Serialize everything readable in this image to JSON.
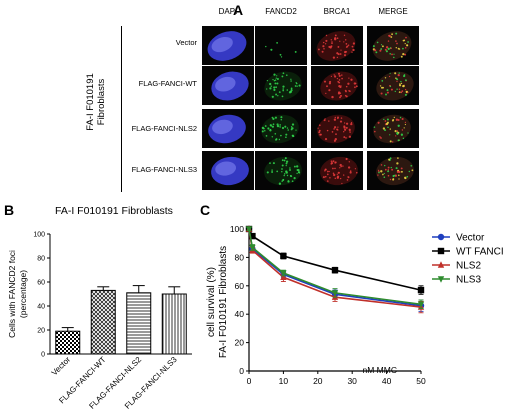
{
  "panel_a": {
    "letter": "A",
    "columns": [
      "DAPI",
      "FANCD2",
      "BRCA1",
      "MERGE"
    ],
    "rows": [
      "Vector",
      "FLAG-FANCI-WT",
      "FLAG-FANCI-NLS2",
      "FLAG-FANCI-NLS3"
    ],
    "side_title_line1": "FA-I F010191",
    "side_title_line2": "Fibroblasts",
    "colors": {
      "dapi": "#3b3fd8",
      "fancd2": "#2fd24a",
      "brca1": "#e0393a",
      "merge": "#d8c040"
    }
  },
  "panel_b": {
    "letter": "B",
    "title": "FA-I F010191 Fibroblasts",
    "ylabel_line1": "Cells with FANCD2 foci",
    "ylabel_line2": "(percentage)"
  },
  "panel_c": {
    "letter": "C",
    "ylabel_line1": "cell survival (%)",
    "ylabel_line2": "FA-I F010191 Fibroblasts",
    "xlabel": "nM MMC"
  },
  "chart_data": [
    {
      "type": "bar",
      "title": "FA-I F010191 Fibroblasts",
      "categories": [
        "Vector",
        "FLAG-FANCI-WT",
        "FLAG-FANCI-NLS2",
        "FLAG-FANCI-NLS3"
      ],
      "values": [
        19,
        53,
        51,
        50
      ],
      "errors": [
        3,
        3,
        6,
        6
      ],
      "ylabel": "Cells with FANCD2 foci (percentage)",
      "ylim": [
        0,
        100
      ],
      "yticks": [
        0,
        20,
        40,
        60,
        80,
        100
      ],
      "patterns": [
        "checker",
        "diagonal",
        "horizontal",
        "vertical"
      ]
    },
    {
      "type": "line",
      "x": [
        0,
        1,
        10,
        25,
        50
      ],
      "xticks": [
        0,
        10,
        20,
        30,
        40,
        50
      ],
      "yticks": [
        0,
        20,
        40,
        60,
        80,
        100
      ],
      "xlim": [
        0,
        50
      ],
      "ylim": [
        0,
        100
      ],
      "xlabel": "nM MMC",
      "ylabel": "cell survival (%) FA-I F010191 Fibroblasts",
      "legend_position": "right",
      "series": [
        {
          "name": "Vector",
          "color": "#1f3fbf",
          "marker": "circle",
          "values": [
            100,
            86,
            68,
            54,
            46
          ],
          "errors": [
            1,
            2,
            2,
            3,
            4
          ]
        },
        {
          "name": "WT FANCI",
          "color": "#000000",
          "marker": "square",
          "values": [
            100,
            95,
            81,
            71,
            57
          ],
          "errors": [
            1,
            1,
            2,
            2,
            3
          ]
        },
        {
          "name": "NLS2",
          "color": "#c0302a",
          "marker": "triangle-up",
          "values": [
            100,
            85,
            66,
            52,
            45
          ],
          "errors": [
            1,
            2,
            3,
            3,
            4
          ]
        },
        {
          "name": "NLS3",
          "color": "#2e8b2e",
          "marker": "triangle-down",
          "values": [
            100,
            87,
            69,
            55,
            47
          ],
          "errors": [
            1,
            2,
            2,
            3,
            3
          ]
        }
      ]
    }
  ]
}
